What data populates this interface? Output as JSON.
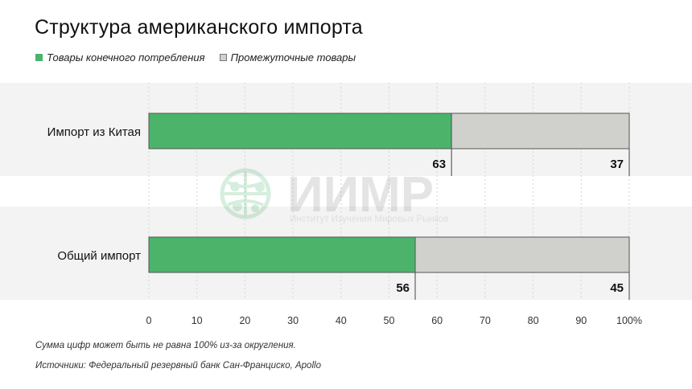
{
  "title": "Структура американского импорта",
  "footnote": "Сумма цифр может быть не равна 100% из-за округления.",
  "source": "Источники: Федеральный резервный банк Сан-Франциско, Apollo",
  "watermark": {
    "name": "ИИМР",
    "subtitle": "Институт Изучения Мировых Рынков"
  },
  "colors": {
    "consumer": "#4bb46a",
    "intermediate": "#d0d0cc",
    "band": "#f3f3f3"
  },
  "chart_data": {
    "type": "bar",
    "orientation": "horizontal",
    "stacked": true,
    "title": "Структура американского импорта",
    "categories": [
      "Импорт из Китая",
      "Общий импорт"
    ],
    "series": [
      {
        "name": "Товары конечного потребления",
        "values": [
          63,
          56
        ]
      },
      {
        "name": "Промежуточные товары",
        "values": [
          37,
          45
        ]
      }
    ],
    "x_ticks": [
      "0",
      "10",
      "20",
      "30",
      "40",
      "50",
      "60",
      "70",
      "80",
      "90",
      "100%"
    ],
    "xlim": [
      0,
      100
    ],
    "grid": true,
    "legend": "top-left"
  }
}
